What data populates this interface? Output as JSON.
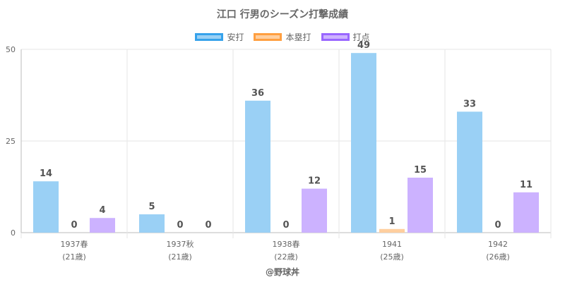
{
  "chart_data": {
    "type": "bar",
    "title": "江口 行男のシーズン打撃成績",
    "categories": [
      "1937春",
      "1937秋",
      "1938春",
      "1941",
      "1942"
    ],
    "category_sublabels": [
      "(21歳)",
      "(21歳)",
      "(22歳)",
      "(25歳)",
      "(26歳)"
    ],
    "series": [
      {
        "name": "安打",
        "values": [
          14,
          5,
          36,
          49,
          33
        ],
        "color": "#9ad0f5",
        "border": "#36a2eb"
      },
      {
        "name": "本塁打",
        "values": [
          0,
          0,
          0,
          1,
          0
        ],
        "color": "#ffcf9f",
        "border": "#ff9f40"
      },
      {
        "name": "打点",
        "values": [
          4,
          0,
          12,
          15,
          11
        ],
        "color": "#ccb2ff",
        "border": "#9966ff"
      }
    ],
    "ylim": [
      0,
      50
    ],
    "yticks": [
      0,
      25,
      50
    ],
    "grid": true,
    "legend": "top-center"
  },
  "credit": "@野球丼"
}
